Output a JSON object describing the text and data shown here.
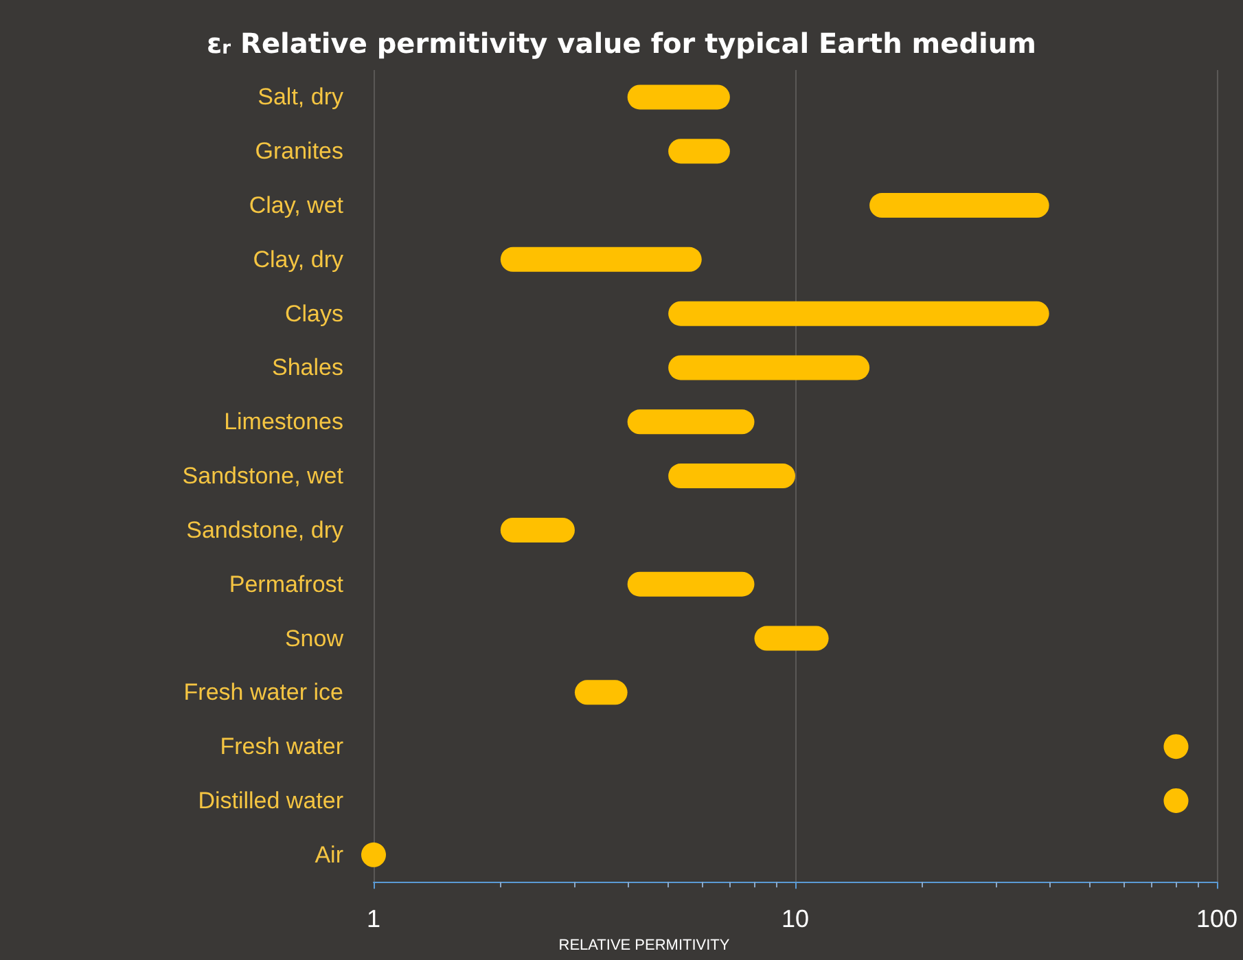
{
  "chart_data": {
    "type": "bar",
    "orientation": "horizontal",
    "title": "ε$_{r}$ Relative permitivity value for typical Earth medium",
    "xlabel": "RELATIVE PERMITIVITY",
    "categories": [
      "Salt, dry",
      "Granites",
      "Clay, wet",
      "Clay, dry",
      "Clays",
      "Shales",
      "Limestones",
      "Sandstone, wet",
      "Sandstone, dry",
      "Permafrost",
      "Snow",
      "Fresh water ice",
      "Fresh water",
      "Distilled water",
      "Air"
    ],
    "series": [
      {
        "color": "#ffc000",
        "base": [
          4,
          5,
          15,
          2,
          5,
          5,
          4,
          5,
          2,
          4,
          8,
          3,
          null,
          null,
          null
        ],
        "values": [
          3,
          2,
          25,
          4,
          35,
          10,
          4,
          5,
          1,
          4,
          4,
          1,
          null,
          null,
          null
        ]
      },
      {
        "type": "scatter",
        "color": "#ffc000",
        "values": [
          null,
          null,
          null,
          null,
          null,
          null,
          null,
          null,
          null,
          null,
          null,
          null,
          80,
          80,
          1
        ]
      }
    ],
    "xlim": [
      1,
      100
    ],
    "xticks": [
      1,
      10,
      100
    ],
    "log": "x",
    "grid": "x"
  }
}
